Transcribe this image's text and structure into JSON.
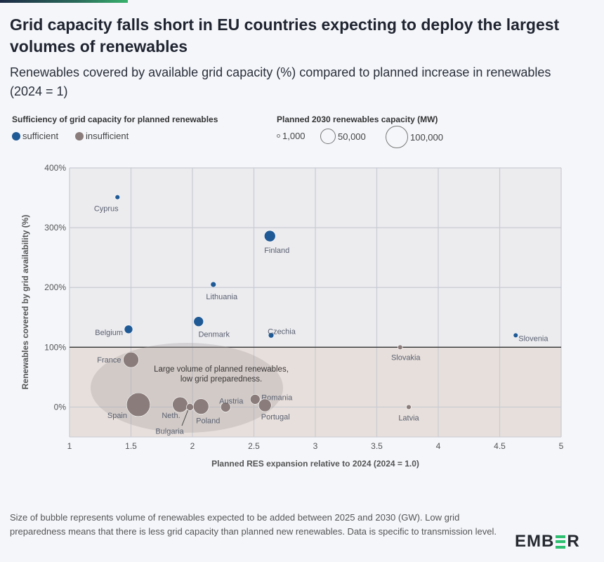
{
  "header": {
    "title": "Grid capacity falls short in EU countries expecting to deploy the largest volumes of renewables",
    "subtitle": "Renewables covered by available grid capacity (%) compared to planned increase in renewables (2024 = 1)"
  },
  "legend": {
    "color_title": "Sufficiency of grid capacity for planned renewables",
    "color_items": [
      {
        "label": "sufficient",
        "color": "#1f5a96"
      },
      {
        "label": "insufficient",
        "color": "#8a7c7a"
      }
    ],
    "size_title": "Planned 2030 renewables capacity (MW)",
    "size_items": [
      {
        "label": "1,000",
        "value": 1000
      },
      {
        "label": "50,000",
        "value": 50000
      },
      {
        "label": "100,000",
        "value": 100000
      }
    ]
  },
  "chart_data": {
    "type": "scatter",
    "xlabel": "Planned RES expansion relative to 2024 (2024 = 1.0)",
    "ylabel": "Renewables covered by grid availability (%)",
    "xlim": [
      1,
      5
    ],
    "ylim": [
      -50,
      400
    ],
    "x_ticks": [
      "1",
      "1.5",
      "2",
      "2.5",
      "3",
      "3.5",
      "4",
      "4.5",
      "5"
    ],
    "y_ticks": [
      "0%",
      "100%",
      "200%",
      "300%",
      "400%"
    ],
    "grid": true,
    "reference_line_y": 100,
    "annotation": "Large volume of planned renewables, low grid preparedness.",
    "colors": {
      "sufficient": "#1f5a96",
      "insufficient": "#8a7c7a",
      "upper_bg": "#ececef",
      "lower_bg": "#e7dfdb"
    },
    "points": [
      {
        "name": "Cyprus",
        "x": 1.39,
        "y": 351,
        "mw": 4500,
        "group": "sufficient"
      },
      {
        "name": "Finland",
        "x": 2.63,
        "y": 286,
        "mw": 25000,
        "group": "sufficient"
      },
      {
        "name": "Lithuania",
        "x": 2.17,
        "y": 205,
        "mw": 6000,
        "group": "sufficient"
      },
      {
        "name": "Belgium",
        "x": 1.48,
        "y": 130,
        "mw": 14000,
        "group": "sufficient"
      },
      {
        "name": "Denmark",
        "x": 2.05,
        "y": 143,
        "mw": 19000,
        "group": "sufficient"
      },
      {
        "name": "Czechia",
        "x": 2.64,
        "y": 120,
        "mw": 6000,
        "group": "sufficient"
      },
      {
        "name": "Slovenia",
        "x": 4.63,
        "y": 120,
        "mw": 4500,
        "group": "sufficient"
      },
      {
        "name": "Slovakia",
        "x": 3.69,
        "y": 100,
        "mw": 4500,
        "group": "insufficient"
      },
      {
        "name": "Latvia",
        "x": 3.76,
        "y": 0,
        "mw": 4500,
        "group": "insufficient"
      },
      {
        "name": "France",
        "x": 1.5,
        "y": 79,
        "mw": 47000,
        "group": "insufficient"
      },
      {
        "name": "Spain",
        "x": 1.56,
        "y": 4,
        "mw": 110000,
        "group": "insufficient"
      },
      {
        "name": "Neth.",
        "x": 1.9,
        "y": 4,
        "mw": 47000,
        "group": "insufficient"
      },
      {
        "name": "Bulgaria",
        "x": 1.98,
        "y": 0,
        "mw": 10000,
        "group": "insufficient"
      },
      {
        "name": "Poland",
        "x": 2.07,
        "y": 1,
        "mw": 47000,
        "group": "insufficient"
      },
      {
        "name": "Austria",
        "x": 2.27,
        "y": 0,
        "mw": 19000,
        "group": "insufficient"
      },
      {
        "name": "Romania",
        "x": 2.51,
        "y": 13,
        "mw": 19000,
        "group": "insufficient"
      },
      {
        "name": "Portugal",
        "x": 2.59,
        "y": 3,
        "mw": 32000,
        "group": "insufficient"
      }
    ]
  },
  "footer": {
    "note": "Size of bubble represents volume of renewables expected to be added between 2025 and 2030 (GW). Low grid preparedness means that there is less grid capacity than planned new renewables. Data is specific to transmission level.",
    "logo": "EMBER"
  }
}
